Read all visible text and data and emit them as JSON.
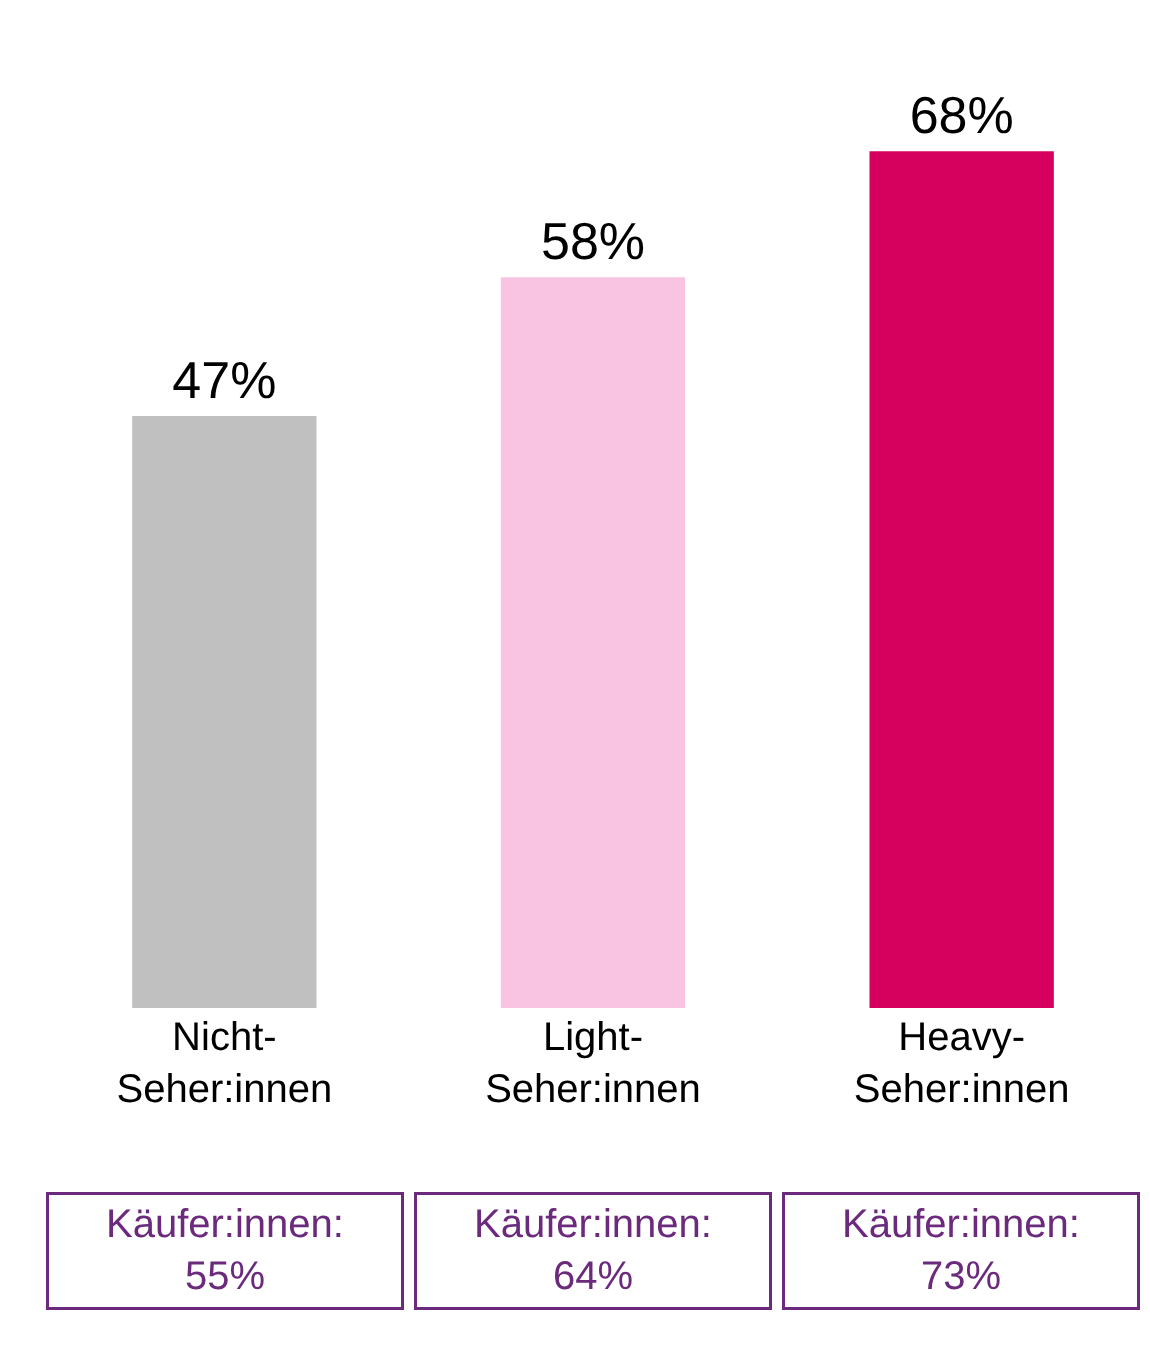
{
  "chart_data": {
    "type": "bar",
    "categories": [
      "Nicht-Seher:innen",
      "Light-Seher:innen",
      "Heavy-Seher:innen"
    ],
    "values": [
      47,
      58,
      68
    ],
    "colors": [
      "#c0c0c0",
      "#f9c4e1",
      "#d6005f"
    ],
    "value_labels": [
      "47%",
      "58%",
      "68%"
    ],
    "annotations": [
      "Käufer:innen: 55%",
      "Käufer:innen: 64%",
      "Käufer:innen: 73%"
    ],
    "legend": false
  }
}
